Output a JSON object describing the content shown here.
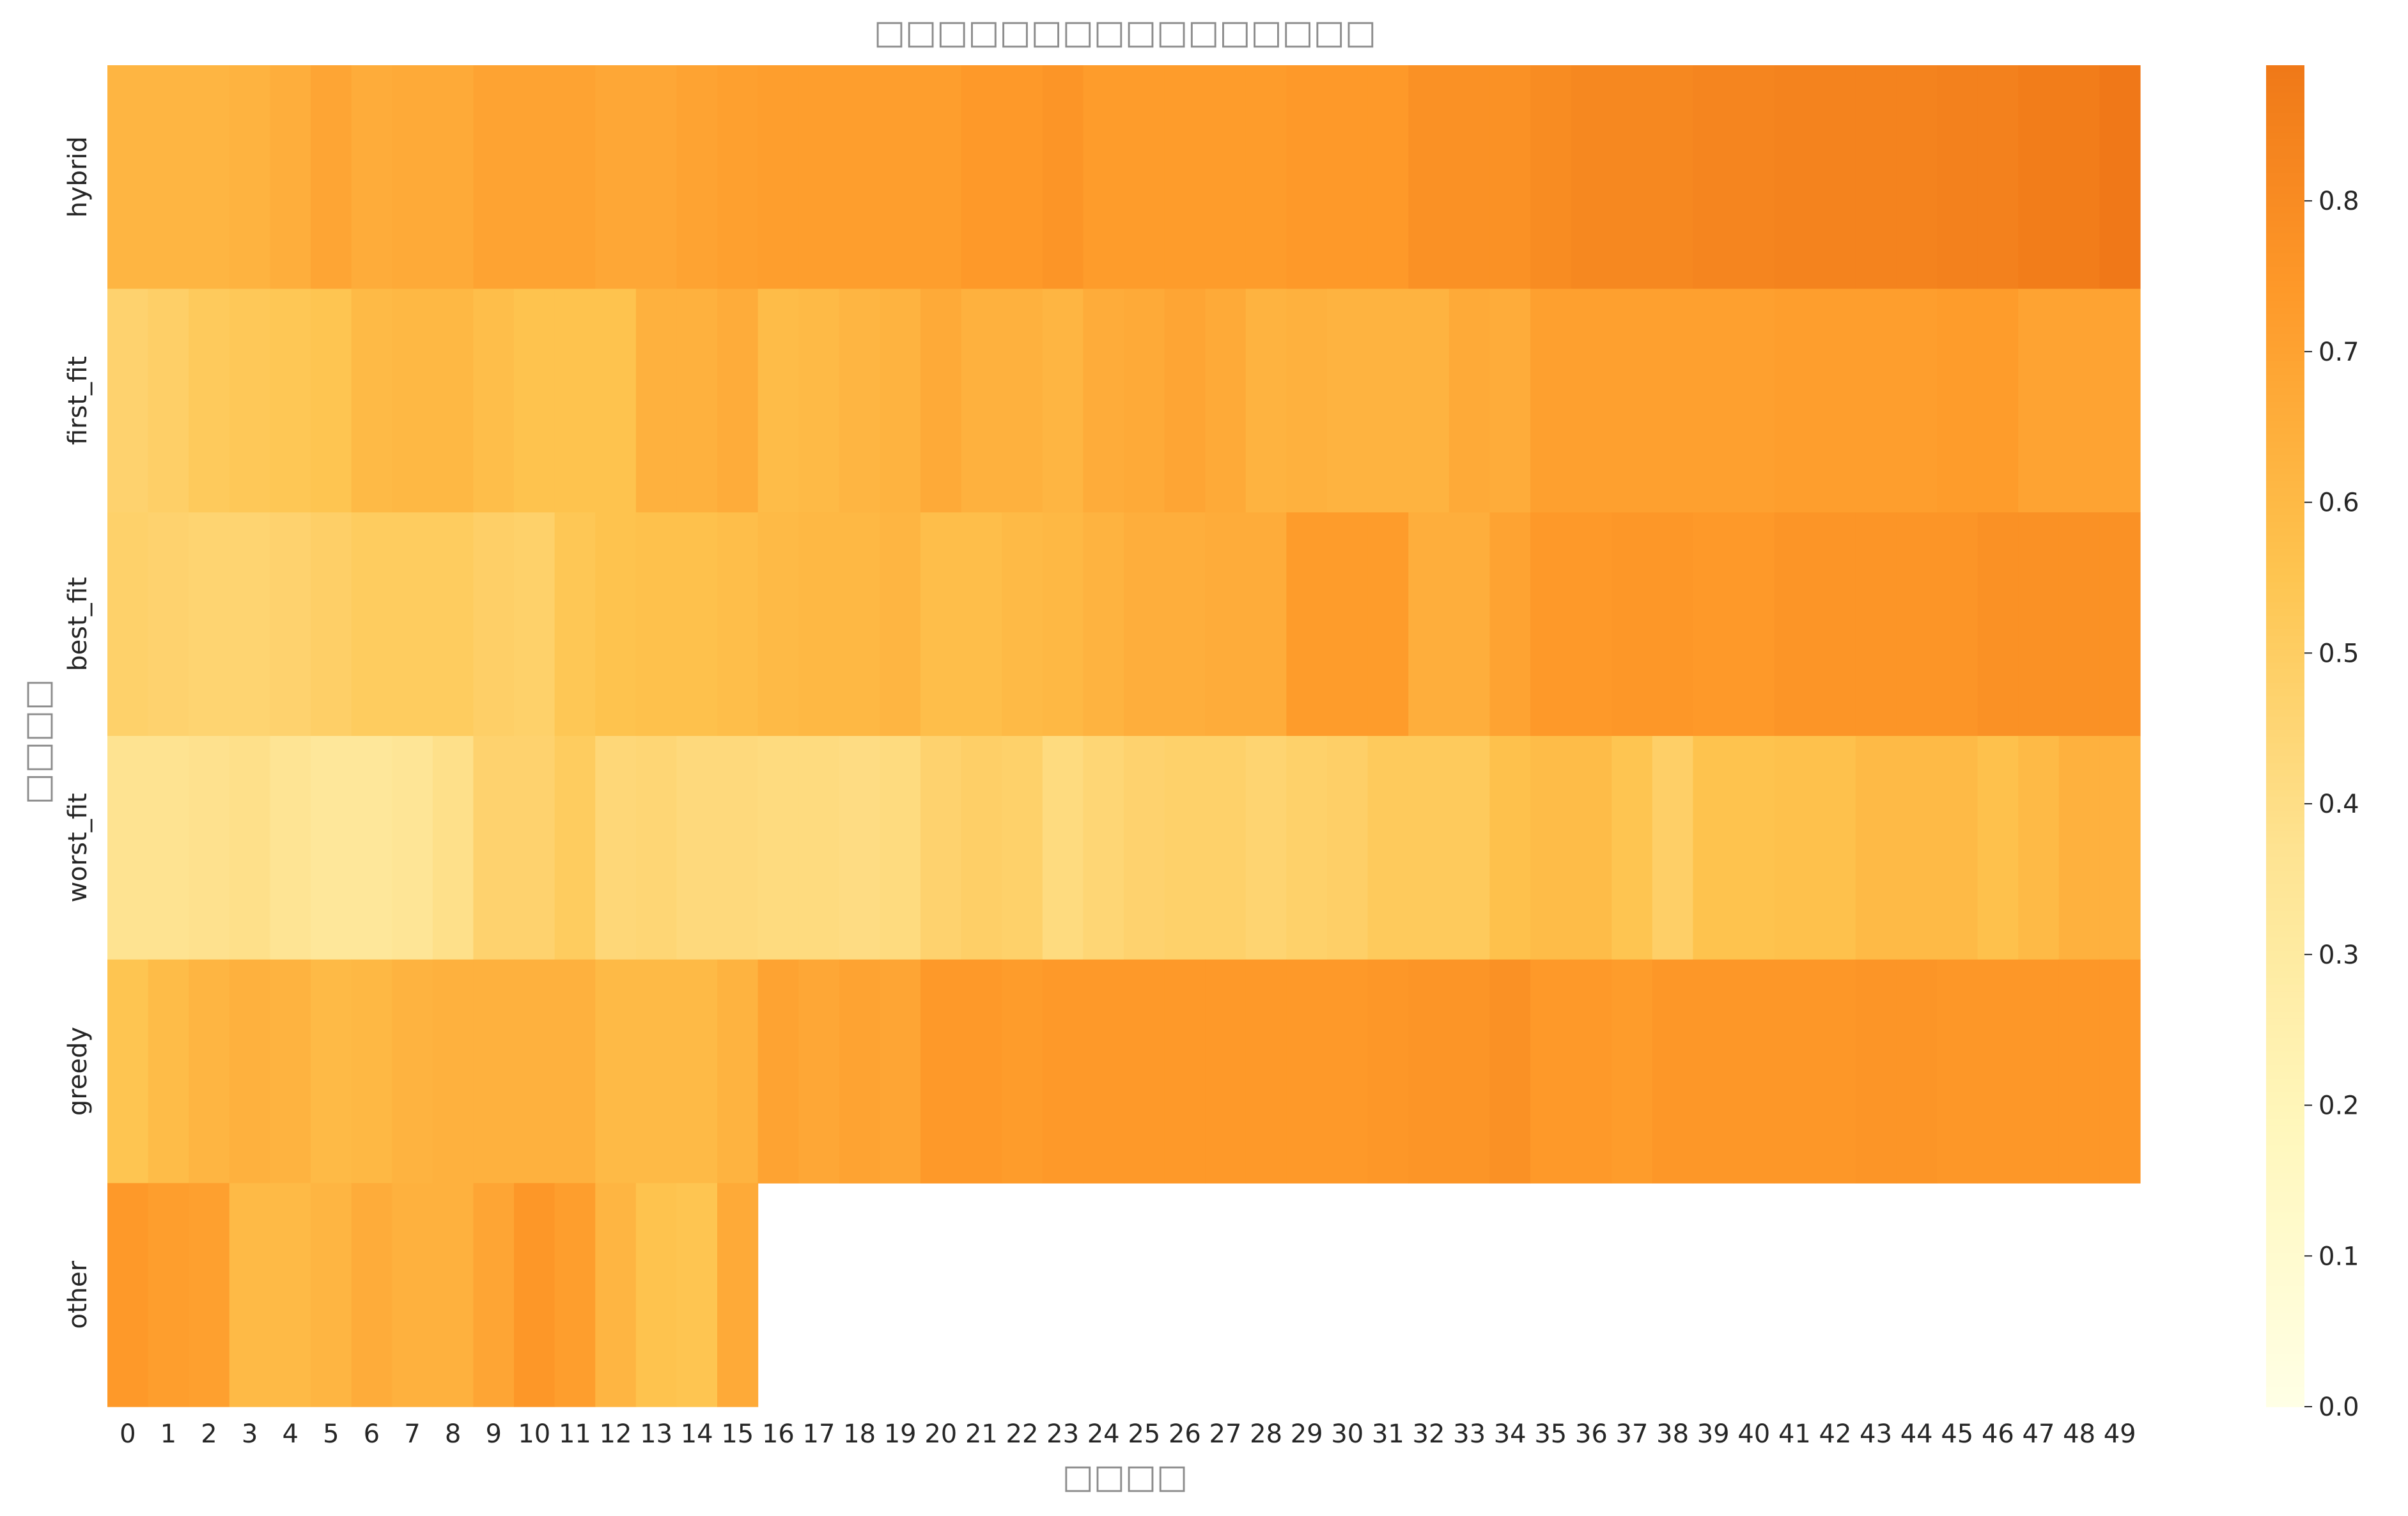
{
  "chart_data": {
    "type": "heatmap",
    "title": "□□□□□□□□□□□□□□□□",
    "xlabel": "□□□□",
    "ylabel": "□□□□",
    "x_categories": [
      "0",
      "1",
      "2",
      "3",
      "4",
      "5",
      "6",
      "7",
      "8",
      "9",
      "10",
      "11",
      "12",
      "13",
      "14",
      "15",
      "16",
      "17",
      "18",
      "19",
      "20",
      "21",
      "22",
      "23",
      "24",
      "25",
      "26",
      "27",
      "28",
      "29",
      "30",
      "31",
      "32",
      "33",
      "34",
      "35",
      "36",
      "37",
      "38",
      "39",
      "40",
      "41",
      "42",
      "43",
      "44",
      "45",
      "46",
      "47",
      "48",
      "49"
    ],
    "y_categories": [
      "hybrid",
      "first_fit",
      "best_fit",
      "worst_fit",
      "greedy",
      "other"
    ],
    "values": [
      [
        0.62,
        0.62,
        0.62,
        0.63,
        0.65,
        0.69,
        0.66,
        0.67,
        0.67,
        0.7,
        0.7,
        0.7,
        0.68,
        0.68,
        0.7,
        0.71,
        0.72,
        0.72,
        0.72,
        0.72,
        0.72,
        0.74,
        0.74,
        0.76,
        0.73,
        0.73,
        0.73,
        0.73,
        0.73,
        0.74,
        0.74,
        0.74,
        0.78,
        0.78,
        0.78,
        0.8,
        0.82,
        0.82,
        0.82,
        0.83,
        0.83,
        0.84,
        0.84,
        0.84,
        0.84,
        0.85,
        0.85,
        0.87,
        0.87,
        0.89
      ],
      [
        0.47,
        0.49,
        0.52,
        0.53,
        0.54,
        0.55,
        0.6,
        0.61,
        0.61,
        0.58,
        0.56,
        0.56,
        0.56,
        0.64,
        0.64,
        0.66,
        0.59,
        0.6,
        0.62,
        0.63,
        0.67,
        0.64,
        0.64,
        0.62,
        0.66,
        0.67,
        0.69,
        0.67,
        0.63,
        0.64,
        0.63,
        0.63,
        0.63,
        0.67,
        0.66,
        0.71,
        0.71,
        0.71,
        0.71,
        0.71,
        0.71,
        0.72,
        0.72,
        0.72,
        0.72,
        0.73,
        0.73,
        0.7,
        0.7,
        0.7
      ],
      [
        0.48,
        0.47,
        0.46,
        0.46,
        0.47,
        0.49,
        0.51,
        0.51,
        0.51,
        0.49,
        0.48,
        0.54,
        0.56,
        0.57,
        0.57,
        0.58,
        0.6,
        0.61,
        0.61,
        0.62,
        0.58,
        0.58,
        0.6,
        0.61,
        0.63,
        0.65,
        0.65,
        0.66,
        0.66,
        0.73,
        0.73,
        0.73,
        0.65,
        0.65,
        0.7,
        0.74,
        0.74,
        0.75,
        0.75,
        0.74,
        0.74,
        0.76,
        0.76,
        0.76,
        0.76,
        0.76,
        0.78,
        0.78,
        0.78,
        0.78
      ],
      [
        0.37,
        0.37,
        0.38,
        0.39,
        0.36,
        0.33,
        0.33,
        0.35,
        0.39,
        0.47,
        0.47,
        0.51,
        0.44,
        0.45,
        0.43,
        0.43,
        0.42,
        0.42,
        0.41,
        0.42,
        0.47,
        0.49,
        0.48,
        0.42,
        0.45,
        0.47,
        0.48,
        0.48,
        0.46,
        0.48,
        0.49,
        0.52,
        0.52,
        0.52,
        0.57,
        0.59,
        0.59,
        0.55,
        0.49,
        0.56,
        0.56,
        0.57,
        0.57,
        0.6,
        0.6,
        0.6,
        0.57,
        0.6,
        0.64,
        0.64
      ],
      [
        0.55,
        0.59,
        0.62,
        0.64,
        0.63,
        0.6,
        0.61,
        0.63,
        0.64,
        0.64,
        0.64,
        0.64,
        0.6,
        0.6,
        0.6,
        0.63,
        0.7,
        0.68,
        0.7,
        0.69,
        0.74,
        0.74,
        0.73,
        0.74,
        0.74,
        0.74,
        0.74,
        0.74,
        0.74,
        0.74,
        0.74,
        0.75,
        0.76,
        0.76,
        0.78,
        0.74,
        0.74,
        0.73,
        0.75,
        0.75,
        0.75,
        0.75,
        0.75,
        0.76,
        0.76,
        0.75,
        0.75,
        0.75,
        0.75,
        0.75
      ],
      [
        0.74,
        0.72,
        0.71,
        0.6,
        0.6,
        0.62,
        0.66,
        0.64,
        0.64,
        0.69,
        0.75,
        0.72,
        0.62,
        0.56,
        0.55,
        0.67,
        null,
        null,
        null,
        null,
        null,
        null,
        null,
        null,
        null,
        null,
        null,
        null,
        null,
        null,
        null,
        null,
        null,
        null,
        null,
        null,
        null,
        null,
        null,
        null,
        null,
        null,
        null,
        null,
        null,
        null,
        null,
        null,
        null,
        null
      ]
    ],
    "colorbar": {
      "colormap": "YlOrBr",
      "vmin": 0.0,
      "vmax": 0.89,
      "ticks": [
        "0.0",
        "0.1",
        "0.2",
        "0.3",
        "0.4",
        "0.5",
        "0.6",
        "0.7",
        "0.8"
      ]
    },
    "grid": false,
    "legend": "colorbar-right"
  }
}
